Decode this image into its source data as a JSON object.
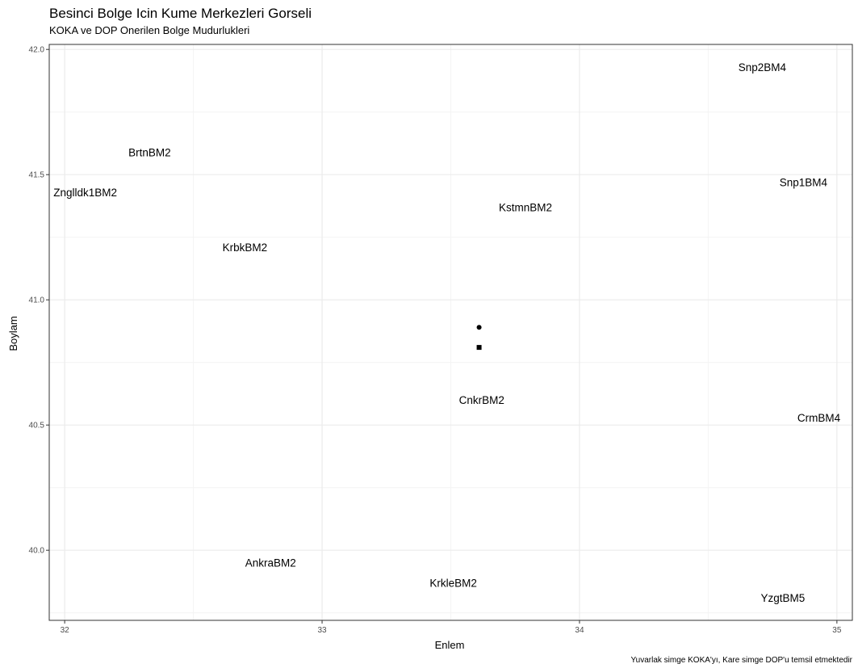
{
  "chart_data": {
    "type": "scatter",
    "title": "Besinci Bolge Icin Kume Merkezleri Gorseli",
    "subtitle": "KOKA ve DOP Onerilen Bolge Mudurlukleri",
    "xlabel": "Enlem",
    "ylabel": "Boylam",
    "caption": "Yuvarlak simge KOKA'yı, Kare simge DOP'u temsil etmektedir",
    "xlim": [
      31.94,
      35.06
    ],
    "ylim": [
      39.72,
      42.02
    ],
    "x_ticks": [
      32,
      33,
      34,
      35
    ],
    "x_tick_labels": [
      "32",
      "33",
      "34",
      "35"
    ],
    "y_ticks": [
      40.0,
      40.5,
      41.0,
      41.5,
      42.0
    ],
    "y_tick_labels": [
      "40.0",
      "40.5",
      "41.0",
      "41.5",
      "42.0"
    ],
    "grid": true,
    "labels": [
      {
        "text": "Snp2BM4",
        "x": 34.71,
        "y": 41.93
      },
      {
        "text": "BrtnBM2",
        "x": 32.33,
        "y": 41.59
      },
      {
        "text": "Znglldk1BM2",
        "x": 32.08,
        "y": 41.43
      },
      {
        "text": "Snp1BM4",
        "x": 34.87,
        "y": 41.47
      },
      {
        "text": "KstmnBM2",
        "x": 33.79,
        "y": 41.37
      },
      {
        "text": "KrbkBM2",
        "x": 32.7,
        "y": 41.21
      },
      {
        "text": "CnkrBM2",
        "x": 33.62,
        "y": 40.6
      },
      {
        "text": "CrmBM4",
        "x": 34.93,
        "y": 40.53
      },
      {
        "text": "AnkraBM2",
        "x": 32.8,
        "y": 39.95
      },
      {
        "text": "KrkleBM2",
        "x": 33.51,
        "y": 39.87
      },
      {
        "text": "YzgtBM5",
        "x": 34.79,
        "y": 39.81
      }
    ],
    "series": [
      {
        "name": "KOKA",
        "shape": "circle",
        "points": [
          {
            "x": 33.61,
            "y": 40.89
          }
        ]
      },
      {
        "name": "DOP",
        "shape": "square",
        "points": [
          {
            "x": 33.61,
            "y": 40.81
          }
        ]
      }
    ],
    "colors": {
      "panel_border": "#333333",
      "grid_major": "#ebebeb",
      "grid_minor": "#f4f4f4",
      "point": "#000000"
    }
  }
}
